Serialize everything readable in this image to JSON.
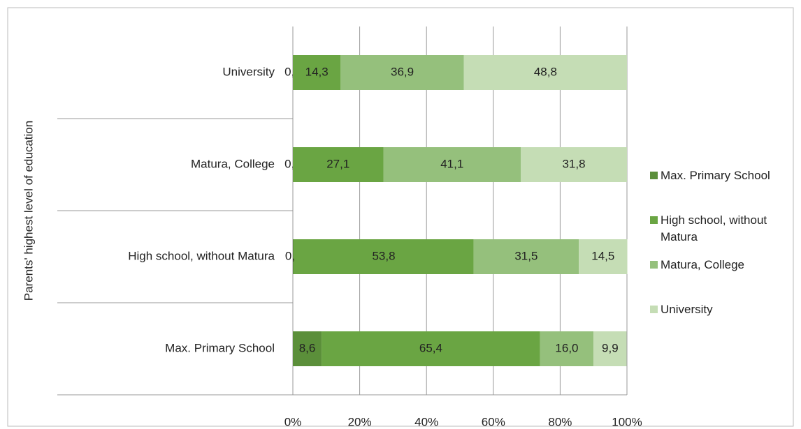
{
  "chart_data": {
    "type": "stacked_barh",
    "y_axis_label": "Parents' highest level of education",
    "categories": [
      "University",
      "Matura, College",
      "High school, without Matura",
      "Max. Primary School"
    ],
    "series": [
      {
        "name": "Max. Primary School",
        "color": "#5b8f3a",
        "values": [
          0.0,
          0.0,
          0.3,
          8.6
        ],
        "value_labels": [
          "0,0",
          "0,0",
          "0,3",
          "8,6"
        ]
      },
      {
        "name": "High school, without Matura",
        "color": "#6aa543",
        "values": [
          14.3,
          27.1,
          53.8,
          65.4
        ],
        "value_labels": [
          "14,3",
          "27,1",
          "53,8",
          "65,4"
        ]
      },
      {
        "name": "Matura, College",
        "color": "#95c07c",
        "values": [
          36.9,
          41.1,
          31.5,
          16.0
        ],
        "value_labels": [
          "36,9",
          "41,1",
          "31,5",
          "16,0"
        ]
      },
      {
        "name": "University",
        "color": "#c5ddb5",
        "values": [
          48.8,
          31.8,
          14.5,
          9.9
        ],
        "value_labels": [
          "48,8",
          "31,8",
          "14,5",
          "9,9"
        ]
      }
    ],
    "xlim": [
      0,
      100
    ],
    "xticks": [
      {
        "value": 0,
        "label": "0%"
      },
      {
        "value": 20,
        "label": "20%"
      },
      {
        "value": 40,
        "label": "40%"
      },
      {
        "value": 60,
        "label": "60%"
      },
      {
        "value": 80,
        "label": "80%"
      },
      {
        "value": 100,
        "label": "100%"
      }
    ],
    "grid": true,
    "legend": "right"
  }
}
